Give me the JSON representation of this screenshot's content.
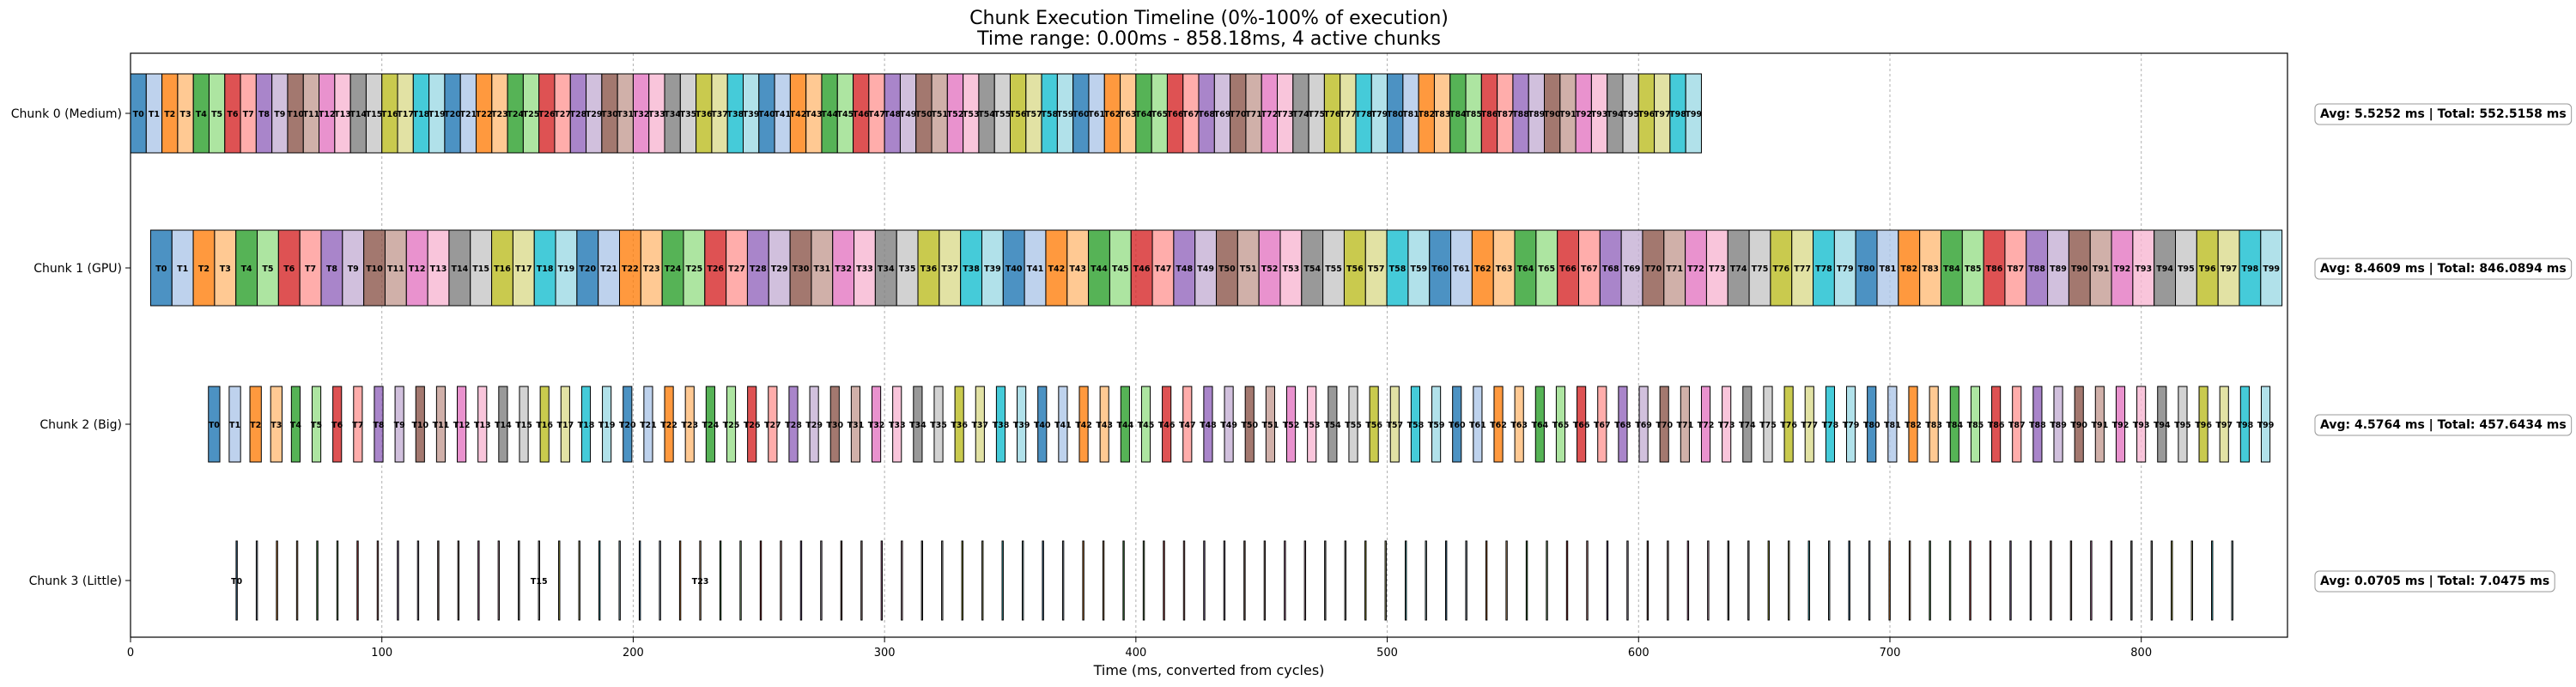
{
  "chart_data": {
    "type": "timeline",
    "title": "Chunk Execution Timeline (0%-100% of execution)",
    "subtitle": "Time range: 0.00ms - 858.18ms, 4 active chunks",
    "xlabel": "Time (ms, converted from cycles)",
    "xlim": [
      0,
      858.18
    ],
    "xticks": [
      0,
      100,
      200,
      300,
      400,
      500,
      600,
      700,
      800
    ],
    "grid": "vertical dashed",
    "task_colors": [
      "#1f77b4",
      "#aec7e8",
      "#ff7f0e",
      "#ffbb78",
      "#2ca02c",
      "#98df8a",
      "#d62728",
      "#ff9896",
      "#9467bd",
      "#c5b0d5",
      "#8c564b",
      "#c49c94",
      "#e377c2",
      "#f7b6d2",
      "#7f7f7f",
      "#c7c7c7",
      "#bcbd22",
      "#dbdb8d",
      "#17becf",
      "#9edae5"
    ],
    "chunks": [
      {
        "label": "Chunk 0 (Medium)",
        "summary": "Avg: 5.5252 ms | Total: 552.5158 ms",
        "task_count": 100,
        "start": 0,
        "end": 625,
        "labeled_tasks": "all"
      },
      {
        "label": "Chunk 1 (GPU)",
        "summary": "Avg: 8.4609 ms | Total: 846.0894 ms",
        "task_count": 100,
        "start": 8,
        "end": 856,
        "labeled_tasks": "all"
      },
      {
        "label": "Chunk 2 (Big)",
        "summary": "Avg: 4.5764 ms | Total: 457.6434 ms",
        "task_count": 100,
        "start": 31,
        "end": 856,
        "labeled_tasks": "all"
      },
      {
        "label": "Chunk 3 (Little)",
        "summary": "Avg: 0.0705 ms | Total: 7.0475 ms",
        "task_count": 100,
        "start": 42,
        "end": 844,
        "labeled_tasks": [
          0,
          15,
          23
        ]
      }
    ]
  }
}
